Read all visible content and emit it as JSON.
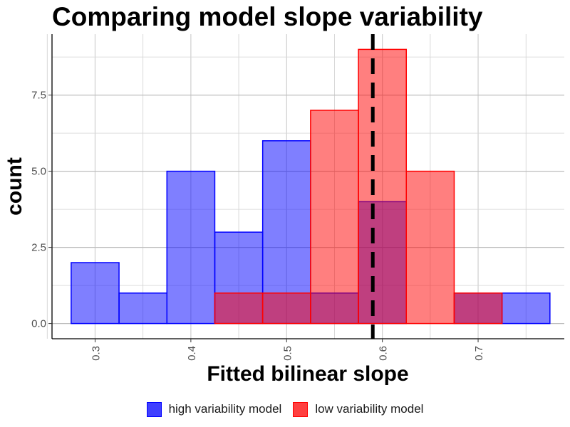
{
  "chart_data": {
    "type": "histogram",
    "title": "Comparing model slope variability",
    "xlabel": "Fitted bilinear slope",
    "ylabel": "count",
    "xlim": [
      0.255,
      0.79
    ],
    "ylim": [
      -0.5,
      9.5
    ],
    "x_ticks": [
      0.3,
      0.4,
      0.5,
      0.6,
      0.7
    ],
    "x_tick_labels": [
      "0.3",
      "0.4",
      "0.5",
      "0.6",
      "0.7"
    ],
    "y_ticks": [
      0,
      2.5,
      5,
      7.5
    ],
    "y_tick_labels": [
      "0.0",
      "2.5",
      "5.0",
      "7.5"
    ],
    "bin_width": 0.05,
    "reference_line_x": 0.59,
    "grid": true,
    "legend_position": "bottom",
    "series": [
      {
        "name": "high variability model",
        "fill": "#0000ff",
        "stroke": "#0000ff",
        "bins": [
          {
            "x0": 0.275,
            "x1": 0.325,
            "count": 2
          },
          {
            "x0": 0.325,
            "x1": 0.375,
            "count": 1
          },
          {
            "x0": 0.375,
            "x1": 0.425,
            "count": 5
          },
          {
            "x0": 0.425,
            "x1": 0.475,
            "count": 3
          },
          {
            "x0": 0.475,
            "x1": 0.525,
            "count": 6
          },
          {
            "x0": 0.525,
            "x1": 0.575,
            "count": 1
          },
          {
            "x0": 0.575,
            "x1": 0.625,
            "count": 4
          },
          {
            "x0": 0.675,
            "x1": 0.725,
            "count": 1
          },
          {
            "x0": 0.725,
            "x1": 0.775,
            "count": 1
          }
        ]
      },
      {
        "name": "low variability model",
        "fill": "#ff0000",
        "stroke": "#ff0000",
        "bins": [
          {
            "x0": 0.425,
            "x1": 0.475,
            "count": 1
          },
          {
            "x0": 0.475,
            "x1": 0.525,
            "count": 1
          },
          {
            "x0": 0.525,
            "x1": 0.575,
            "count": 7
          },
          {
            "x0": 0.575,
            "x1": 0.625,
            "count": 9
          },
          {
            "x0": 0.625,
            "x1": 0.675,
            "count": 5
          },
          {
            "x0": 0.675,
            "x1": 0.725,
            "count": 1
          }
        ]
      }
    ]
  }
}
